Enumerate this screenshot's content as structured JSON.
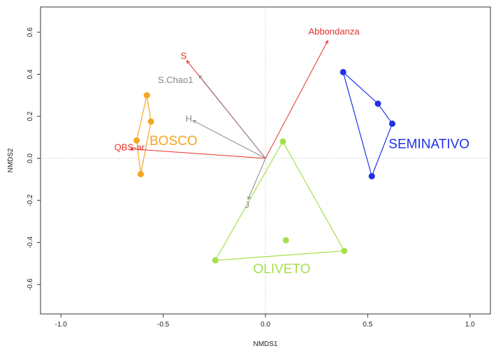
{
  "chart_data": {
    "type": "scatter",
    "title": "",
    "xlabel": "NMDS1",
    "ylabel": "NMDS2",
    "xlim": [
      -1.1,
      1.1
    ],
    "ylim": [
      -0.74,
      0.72
    ],
    "xticks": [
      -1.0,
      -0.5,
      0.0,
      0.5,
      1.0
    ],
    "xtick_labels": [
      "-1.0",
      "-0.5",
      "0.0",
      "0.5",
      "1.0"
    ],
    "yticks": [
      -0.6,
      -0.4,
      -0.2,
      0.0,
      0.2,
      0.4,
      0.6
    ],
    "ytick_labels": [
      "-0.6",
      "-0.4",
      "-0.2",
      "0.0",
      "0.2",
      "0.4",
      "0.6"
    ],
    "reference_lines": {
      "x": 0,
      "y": 0
    },
    "groups": [
      {
        "name": "BOSCO",
        "color": "#F5A623",
        "points": [
          [
            -0.58,
            0.3
          ],
          [
            -0.56,
            0.175
          ],
          [
            -0.63,
            0.085
          ],
          [
            -0.61,
            -0.075
          ]
        ],
        "hull": [
          [
            -0.58,
            0.3
          ],
          [
            -0.56,
            0.175
          ],
          [
            -0.61,
            -0.075
          ],
          [
            -0.63,
            0.085
          ]
        ],
        "label_pos": [
          -0.45,
          0.08
        ]
      },
      {
        "name": "SEMINATIVO",
        "color": "#1F32E6",
        "points": [
          [
            0.38,
            0.41
          ],
          [
            0.55,
            0.26
          ],
          [
            0.62,
            0.165
          ],
          [
            0.52,
            -0.085
          ]
        ],
        "hull": [
          [
            0.38,
            0.41
          ],
          [
            0.55,
            0.26
          ],
          [
            0.62,
            0.165
          ],
          [
            0.52,
            -0.085
          ]
        ],
        "label_pos": [
          0.8,
          0.065
        ]
      },
      {
        "name": "OLIVETO",
        "color": "#A6E04A",
        "points": [
          [
            0.085,
            0.08
          ],
          [
            0.1,
            -0.39
          ],
          [
            0.385,
            -0.44
          ],
          [
            -0.245,
            -0.485
          ]
        ],
        "hull": [
          [
            0.085,
            0.08
          ],
          [
            0.385,
            -0.44
          ],
          [
            -0.245,
            -0.485
          ]
        ],
        "label_pos": [
          0.08,
          -0.53
        ]
      }
    ],
    "vectors": [
      {
        "name": "Abbondanza",
        "color": "#E8302A",
        "end": [
          0.305,
          0.56
        ],
        "label_pos": [
          0.335,
          0.6
        ]
      },
      {
        "name": "S",
        "color": "#E8302A",
        "end": [
          -0.385,
          0.465
        ],
        "label_pos": [
          -0.4,
          0.485
        ]
      },
      {
        "name": "S.Chao1",
        "color": "#888888",
        "end": [
          -0.325,
          0.395
        ],
        "label_pos": [
          -0.44,
          0.37
        ]
      },
      {
        "name": "H",
        "color": "#888888",
        "end": [
          -0.355,
          0.18
        ],
        "label_pos": [
          -0.375,
          0.185
        ]
      },
      {
        "name": "QBS-ar",
        "color": "#E8302A",
        "end": [
          -0.66,
          0.045
        ],
        "label_pos": [
          -0.665,
          0.05
        ]
      },
      {
        "name": "J",
        "color": "#888888",
        "end": [
          -0.085,
          -0.195
        ],
        "label_pos": [
          -0.09,
          -0.225
        ]
      }
    ]
  }
}
